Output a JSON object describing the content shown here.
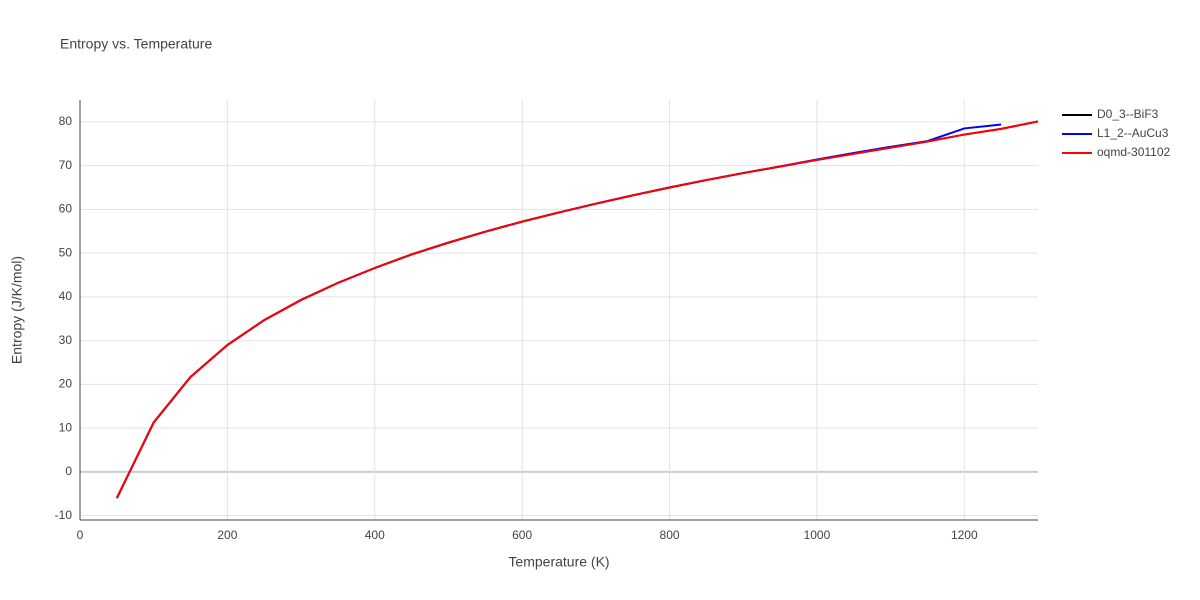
{
  "chart_data": {
    "type": "line",
    "title": "Entropy vs. Temperature",
    "x_label": "Temperature (K)",
    "y_label": "Entropy (J/K/mol)",
    "x": [
      50,
      100,
      150,
      200,
      250,
      300,
      350,
      400,
      450,
      500,
      550,
      600,
      650,
      700,
      750,
      800,
      850,
      900,
      950,
      1000,
      1050,
      1100,
      1150,
      1200,
      1250,
      1300
    ],
    "series": [
      {
        "name": "D0_3--BiF3",
        "color": "#000000",
        "values": [
          -6,
          11.3,
          21.7,
          29,
          34.7,
          39.3,
          43.2,
          46.6,
          49.7,
          52.4,
          54.9,
          57.2,
          59.3,
          61.3,
          63.2,
          65,
          66.7,
          68.3,
          69.8,
          71.3,
          72.7,
          74.1,
          75.5,
          77.1,
          78.4,
          80.1
        ]
      },
      {
        "name": "L1_2--AuCu3",
        "color": "#0000ff",
        "values": [
          -6,
          11.3,
          21.7,
          29,
          34.7,
          39.3,
          43.2,
          46.6,
          49.7,
          52.4,
          54.9,
          57.2,
          59.3,
          61.3,
          63.2,
          65,
          66.7,
          68.3,
          69.8,
          71.4,
          72.9,
          74.3,
          75.6,
          78.5,
          79.4,
          null
        ]
      },
      {
        "name": "oqmd-301102",
        "color": "#ff0000",
        "values": [
          -6,
          11.3,
          21.7,
          29,
          34.7,
          39.3,
          43.2,
          46.6,
          49.7,
          52.4,
          54.9,
          57.2,
          59.3,
          61.3,
          63.2,
          65,
          66.7,
          68.3,
          69.8,
          71.3,
          72.7,
          74.1,
          75.5,
          77.1,
          78.4,
          80.1
        ]
      }
    ],
    "xlim": [
      0,
      1300
    ],
    "xticks": [
      0,
      200,
      400,
      600,
      800,
      1000,
      1200
    ],
    "ylim": [
      -11,
      85
    ],
    "yticks": [
      -10,
      0,
      10,
      20,
      30,
      40,
      50,
      60,
      70,
      80
    ],
    "grid": true
  }
}
